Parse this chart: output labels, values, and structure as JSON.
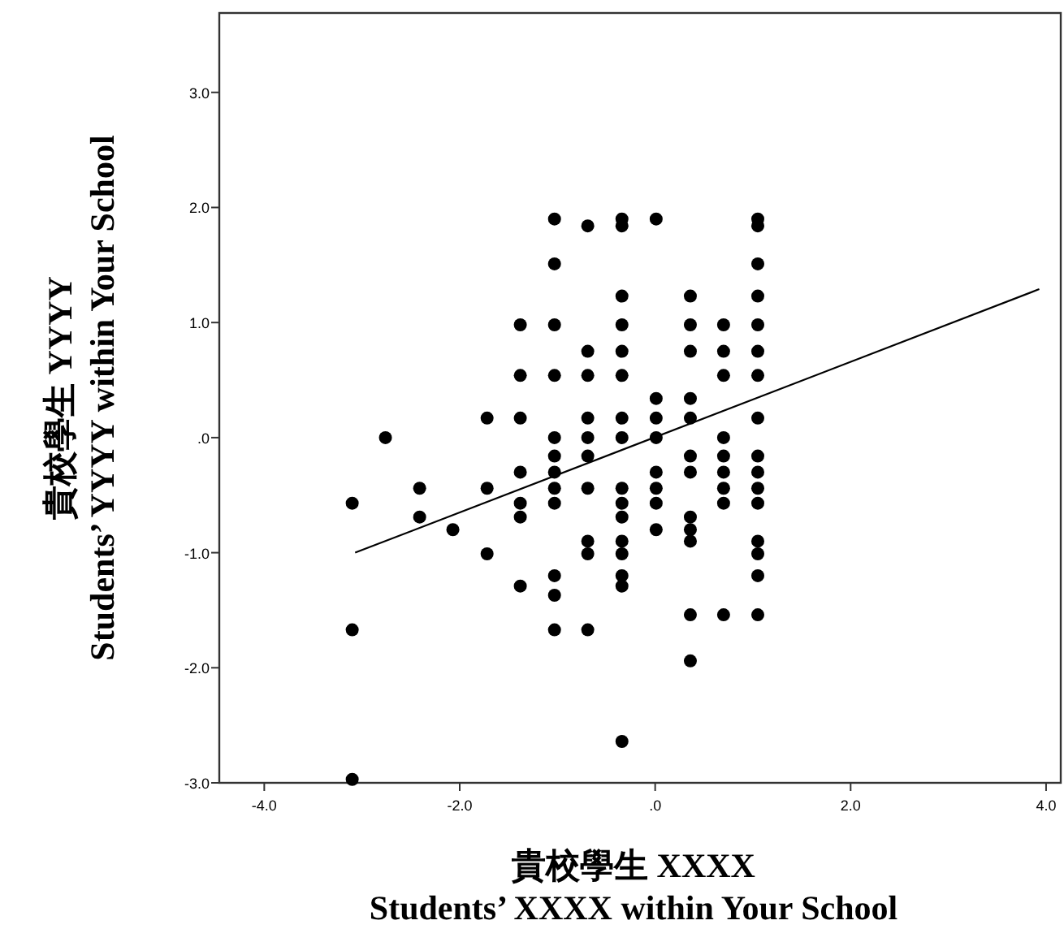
{
  "chart_data": {
    "type": "scatter",
    "xlabel": "貴校學生 XXXX\nStudents’ XXXX within Your School",
    "ylabel": "貴校學生 YYYY\nStudents’ YYYY within Your School",
    "xlim": [
      -4.46,
      4.15
    ],
    "ylim": [
      -3.0,
      3.69
    ],
    "xticks": [
      {
        "value": -4,
        "label": "-4.0"
      },
      {
        "value": -2,
        "label": "-2.0"
      },
      {
        "value": 0,
        "label": ".0"
      },
      {
        "value": 2,
        "label": "2.0"
      },
      {
        "value": 4,
        "label": "4.0"
      }
    ],
    "yticks": [
      {
        "value": -3,
        "label": "-3.0"
      },
      {
        "value": -2,
        "label": "-2.0"
      },
      {
        "value": -1,
        "label": "-1.0"
      },
      {
        "value": 0,
        "label": ".0"
      },
      {
        "value": 1,
        "label": "1.0"
      },
      {
        "value": 2,
        "label": "2.0"
      },
      {
        "value": 3,
        "label": "3.0"
      }
    ],
    "series": [
      {
        "marker": "circle",
        "color": "#000000",
        "x": [
          -3.1,
          -3.1,
          -3.1,
          -2.76,
          -2.41,
          -2.41,
          -2.07,
          -1.72,
          -1.72,
          -1.72,
          -1.38,
          -1.38,
          -1.38,
          -1.38,
          -1.38,
          -1.38,
          -1.38,
          -1.03,
          -1.03,
          -1.03,
          -1.03,
          -1.03,
          -1.03,
          -1.03,
          -1.03,
          -1.03,
          -1.03,
          -1.03,
          -1.03,
          -0.69,
          -0.69,
          -0.69,
          -0.69,
          -0.69,
          -0.69,
          -0.69,
          -0.69,
          -0.69,
          -0.69,
          -0.34,
          -0.34,
          -0.34,
          -0.34,
          -0.34,
          -0.34,
          -0.34,
          -0.34,
          -0.34,
          -0.34,
          -0.34,
          -0.34,
          -0.34,
          -0.34,
          -0.34,
          -0.34,
          0.01,
          0.01,
          0.01,
          0.01,
          0.01,
          0.01,
          0.01,
          0.01,
          0.36,
          0.36,
          0.36,
          0.36,
          0.36,
          0.36,
          0.36,
          0.36,
          0.36,
          0.36,
          0.36,
          0.36,
          0.7,
          0.7,
          0.7,
          0.7,
          0.7,
          0.7,
          0.7,
          0.7,
          0.7,
          1.05,
          1.05,
          1.05,
          1.05,
          1.05,
          1.05,
          1.05,
          1.05,
          1.05,
          1.05,
          1.05,
          1.05,
          1.05,
          1.05,
          1.05,
          1.05
        ],
        "values": [
          -0.57,
          -1.67,
          -2.97,
          0,
          -0.44,
          -0.69,
          -0.8,
          0.17,
          -0.44,
          -1.01,
          0.98,
          0.54,
          0.17,
          -0.3,
          -0.57,
          -0.69,
          -1.29,
          1.9,
          1.51,
          0.98,
          0.54,
          0,
          -0.16,
          -0.3,
          -0.44,
          -0.57,
          -1.2,
          -1.37,
          -1.67,
          1.84,
          0.75,
          0.54,
          0.17,
          0,
          -0.16,
          -0.44,
          -0.9,
          -1.01,
          -1.67,
          1.9,
          1.84,
          1.23,
          0.98,
          0.75,
          0.54,
          0.17,
          0,
          -0.44,
          -0.57,
          -0.69,
          -0.9,
          -1.01,
          -1.2,
          -1.29,
          -2.64,
          1.9,
          0.34,
          0.17,
          0,
          -0.3,
          -0.44,
          -0.57,
          -0.8,
          1.23,
          0.98,
          0.75,
          0.34,
          0.17,
          -0.16,
          -0.3,
          -0.69,
          -0.8,
          -0.9,
          -1.54,
          -1.94,
          0.98,
          0.75,
          0.54,
          0,
          -0.16,
          -0.3,
          -0.44,
          -0.57,
          -1.54,
          1.9,
          1.84,
          1.51,
          1.23,
          0.98,
          0.75,
          0.54,
          0.17,
          -0.16,
          -0.3,
          -0.44,
          -0.57,
          -0.9,
          -1.01,
          -1.2,
          -1.54
        ]
      },
      {
        "type": "line",
        "color": "#000000",
        "x": [
          -3.07,
          3.93
        ],
        "values": [
          -1.0,
          1.29
        ]
      }
    ]
  }
}
